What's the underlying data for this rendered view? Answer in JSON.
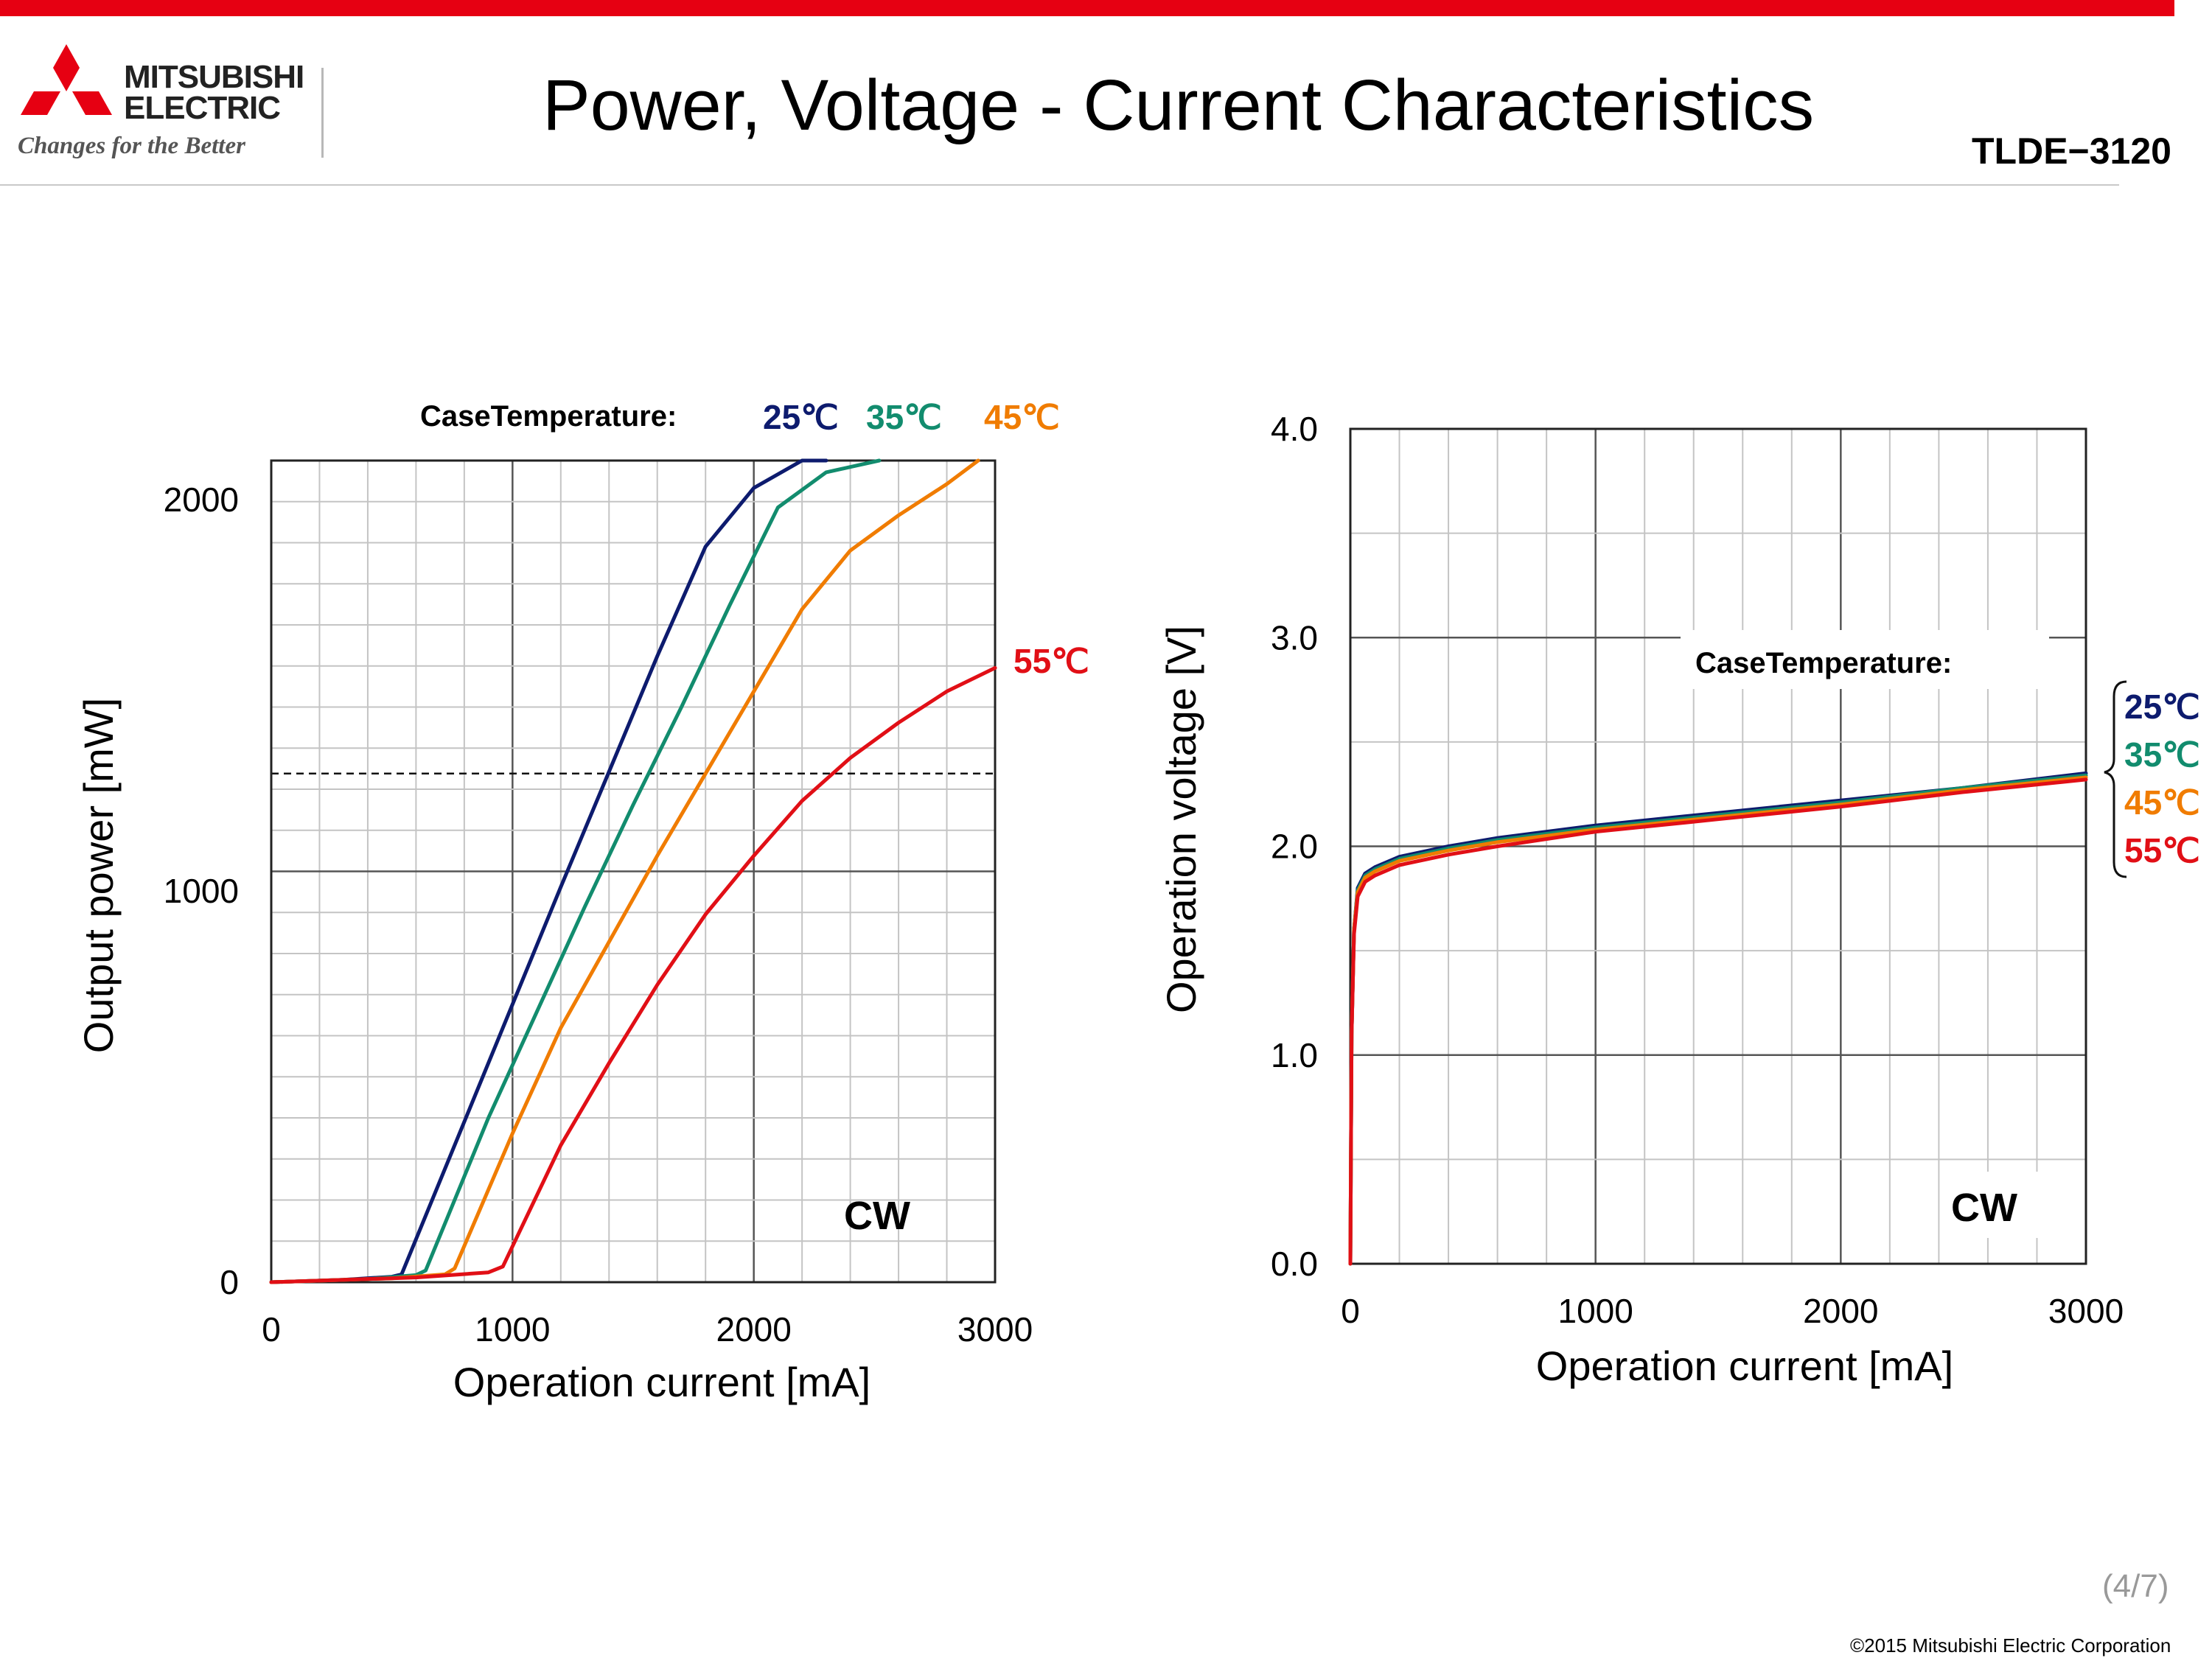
{
  "header": {
    "brand_line1": "MITSUBISHI",
    "brand_line2": "ELECTRIC",
    "tagline": "Changes for the Better",
    "title": "Power, Voltage - Current Characteristics",
    "model": "TLDE−3120"
  },
  "footer": {
    "page": "(4/7)",
    "copyright": "©2015 Mitsubishi Electric Corporation"
  },
  "colors": {
    "accent": "#e60012",
    "t25": "#0d1b6e",
    "t35": "#128c6e",
    "t45": "#f07c00",
    "t55": "#e10f16"
  },
  "chart_data": [
    {
      "type": "line",
      "xlabel": "Operation current [mA]",
      "ylabel": "Output power [mW]",
      "xlim": [
        0,
        3000
      ],
      "ylim": [
        0,
        2100
      ],
      "xticks": [
        0,
        1000,
        2000,
        3000
      ],
      "yticks": [
        0,
        1000,
        2000
      ],
      "grid": true,
      "legend_title": "CaseTemperature:",
      "legend_position": "top",
      "annotation": "CW",
      "series": [
        {
          "name": "25℃",
          "color": "#0d1b6e",
          "x": [
            0,
            300,
            500,
            540,
            800,
            1000,
            1200,
            1400,
            1600,
            1800,
            2000,
            2200,
            2300
          ],
          "y": [
            0,
            6,
            14,
            20,
            410,
            710,
            1010,
            1305,
            1600,
            1880,
            2030,
            2150,
            2180
          ]
        },
        {
          "name": "35℃",
          "color": "#128c6e",
          "x": [
            0,
            400,
            600,
            640,
            900,
            1100,
            1300,
            1500,
            1700,
            1900,
            2100,
            2300,
            2520
          ],
          "y": [
            0,
            8,
            18,
            30,
            420,
            690,
            960,
            1220,
            1470,
            1730,
            1980,
            2070,
            2100
          ]
        },
        {
          "name": "45℃",
          "color": "#f07c00",
          "x": [
            0,
            500,
            720,
            760,
            1000,
            1200,
            1400,
            1600,
            1800,
            2000,
            2200,
            2400,
            2600,
            2800,
            2930
          ],
          "y": [
            0,
            10,
            20,
            35,
            380,
            650,
            870,
            1090,
            1300,
            1510,
            1720,
            1870,
            1960,
            2040,
            2100
          ]
        },
        {
          "name": "55℃",
          "color": "#e10f16",
          "x": [
            0,
            600,
            900,
            960,
            1200,
            1400,
            1600,
            1800,
            2000,
            2200,
            2400,
            2600,
            2800,
            3000
          ],
          "y": [
            0,
            12,
            25,
            40,
            350,
            560,
            760,
            940,
            1090,
            1230,
            1340,
            1430,
            1510,
            1570
          ]
        }
      ],
      "reference_lines": [
        {
          "orientation": "horizontal",
          "y": 1300,
          "style": "dashed"
        },
        {
          "orientation": "horizontal",
          "y": 2100,
          "style": "dashed"
        }
      ]
    },
    {
      "type": "line",
      "xlabel": "Operation current [mA]",
      "ylabel": "Operation voltage [V]",
      "xlim": [
        0,
        3000
      ],
      "ylim": [
        0.0,
        4.0
      ],
      "xticks": [
        0,
        1000,
        2000,
        3000
      ],
      "yticks": [
        0.0,
        1.0,
        2.0,
        3.0,
        4.0
      ],
      "grid": true,
      "legend_title": "CaseTemperature:",
      "legend_position": "right",
      "annotation": "CW",
      "series": [
        {
          "name": "25℃",
          "color": "#0d1b6e",
          "x": [
            0,
            5,
            15,
            30,
            60,
            100,
            200,
            400,
            600,
            1000,
            1500,
            2000,
            2500,
            3000
          ],
          "y": [
            0.0,
            1.1,
            1.6,
            1.8,
            1.87,
            1.9,
            1.95,
            2.0,
            2.04,
            2.1,
            2.16,
            2.22,
            2.28,
            2.35
          ]
        },
        {
          "name": "35℃",
          "color": "#128c6e",
          "x": [
            0,
            5,
            15,
            30,
            60,
            100,
            200,
            400,
            600,
            1000,
            1500,
            2000,
            2500,
            3000
          ],
          "y": [
            0.0,
            1.1,
            1.6,
            1.79,
            1.86,
            1.89,
            1.94,
            1.99,
            2.03,
            2.09,
            2.15,
            2.21,
            2.28,
            2.34
          ]
        },
        {
          "name": "45℃",
          "color": "#f07c00",
          "x": [
            0,
            5,
            15,
            30,
            60,
            100,
            200,
            400,
            600,
            1000,
            1500,
            2000,
            2500,
            3000
          ],
          "y": [
            0.0,
            1.1,
            1.6,
            1.78,
            1.85,
            1.88,
            1.93,
            1.98,
            2.02,
            2.08,
            2.14,
            2.2,
            2.27,
            2.33
          ]
        },
        {
          "name": "55℃",
          "color": "#e10f16",
          "x": [
            0,
            5,
            15,
            30,
            60,
            100,
            200,
            400,
            600,
            1000,
            1500,
            2000,
            2500,
            3000
          ],
          "y": [
            0.0,
            1.1,
            1.58,
            1.76,
            1.83,
            1.86,
            1.91,
            1.96,
            2.0,
            2.07,
            2.13,
            2.19,
            2.26,
            2.32
          ]
        }
      ]
    }
  ]
}
